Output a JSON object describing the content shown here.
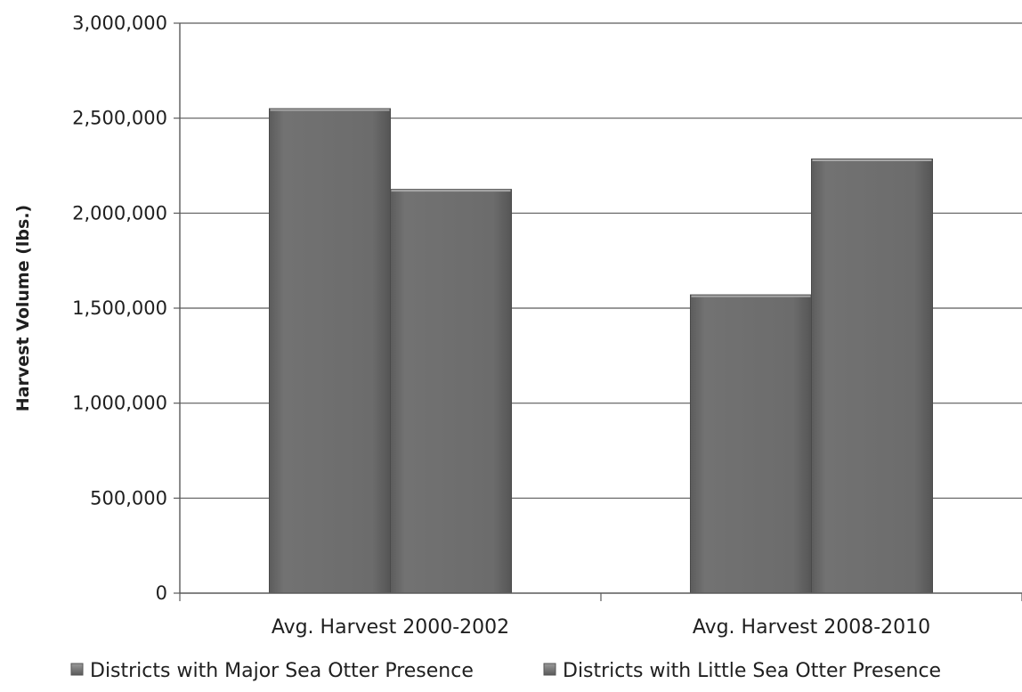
{
  "chart_data": {
    "type": "bar",
    "title": "",
    "xlabel": "",
    "ylabel": "Harvest Volume (lbs.)",
    "ylim": [
      0,
      3000000
    ],
    "yticks": [
      0,
      500000,
      1000000,
      1500000,
      2000000,
      2500000,
      3000000
    ],
    "ytick_labels": [
      "0",
      "500,000",
      "1,000,000",
      "1,500,000",
      "2,000,000",
      "2,500,000",
      "3,000,000"
    ],
    "grid": true,
    "legend_position": "bottom",
    "categories": [
      "Avg. Harvest 2000-2002",
      "Avg. Harvest 2008-2010"
    ],
    "series": [
      {
        "name": "Districts with Major Sea Otter Presence",
        "color": "#6e6e6e",
        "values": [
          2550000,
          1570000
        ]
      },
      {
        "name": "Districts with Little Sea Otter Presence",
        "color": "#6e6e6e",
        "values": [
          2125000,
          2285000
        ]
      }
    ]
  }
}
